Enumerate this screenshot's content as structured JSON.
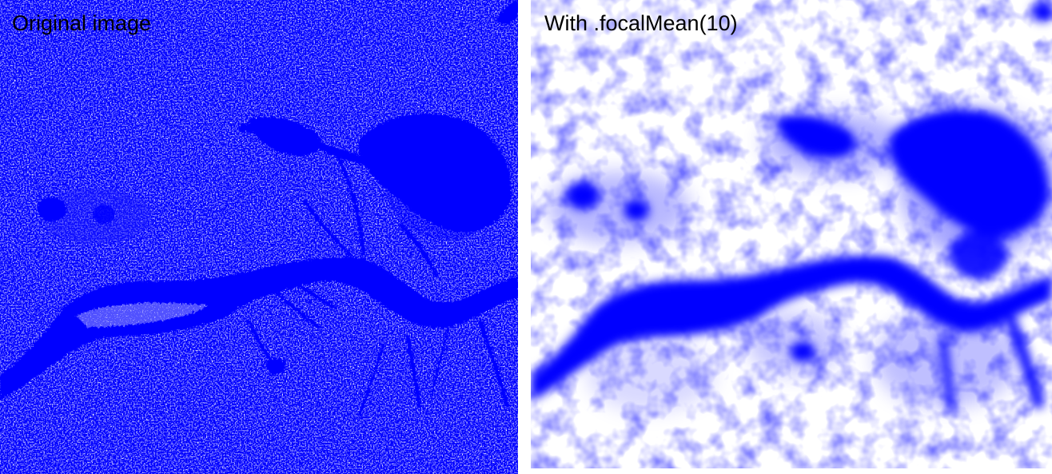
{
  "panels": {
    "left": {
      "caption": "Original image",
      "style": "speckled binary water mask"
    },
    "right": {
      "caption": "With .focalMean(10)",
      "style": "smoothed water mask"
    }
  },
  "colors": {
    "water": "#0000ff",
    "background": "#ffffff",
    "caption_text": "#000000"
  }
}
